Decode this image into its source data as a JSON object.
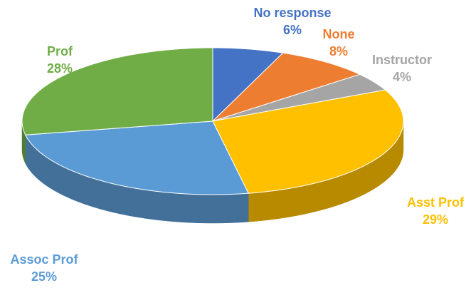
{
  "chart_data": {
    "type": "pie",
    "style": "3d-tilted",
    "slices": [
      {
        "label": "No response",
        "value": 6,
        "display": "6%",
        "color": "#4472C4"
      },
      {
        "label": "None",
        "value": 8,
        "display": "8%",
        "color": "#ED7D31"
      },
      {
        "label": "Instructor",
        "value": 4,
        "display": "4%",
        "color": "#A5A5A5"
      },
      {
        "label": "Asst Prof",
        "value": 29,
        "display": "29%",
        "color": "#FFC000"
      },
      {
        "label": "Assoc Prof",
        "value": 25,
        "display": "25%",
        "color": "#5B9BD5"
      },
      {
        "label": "Prof",
        "value": 28,
        "display": "28%",
        "color": "#70AD47"
      }
    ],
    "start_angle_deg": 0,
    "direction": "clockwise"
  }
}
